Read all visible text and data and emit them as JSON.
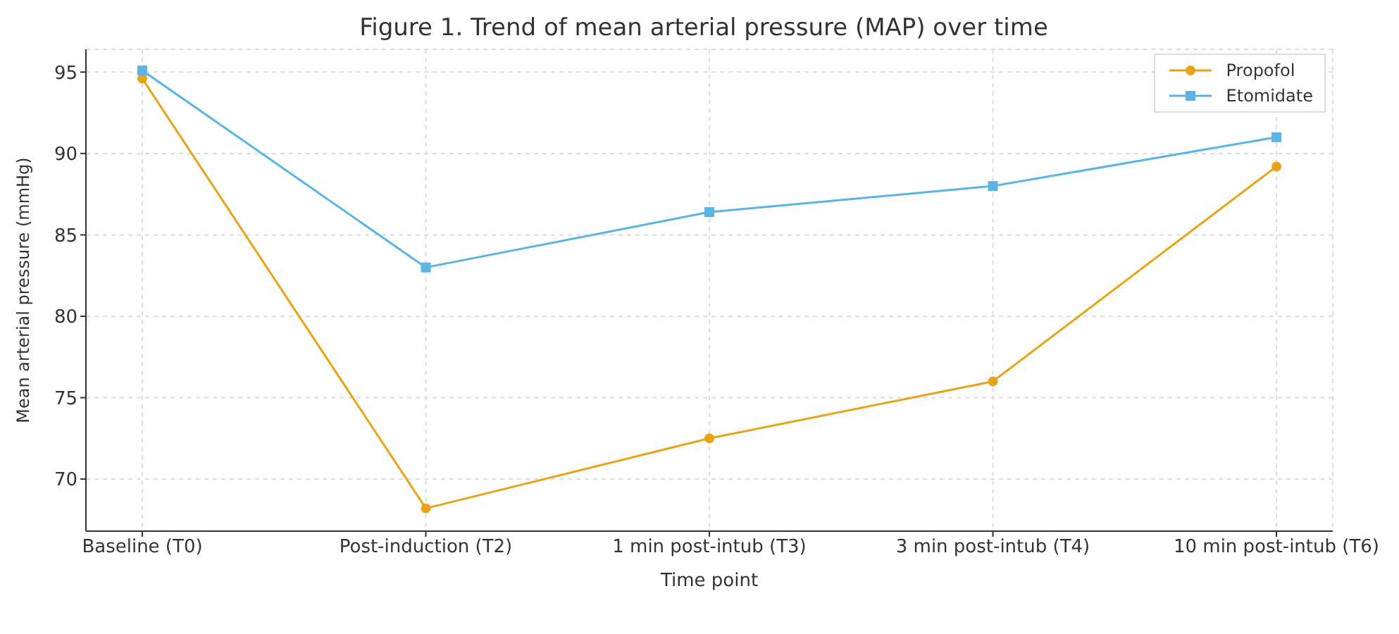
{
  "chart_data": {
    "type": "line",
    "title": "Figure 1. Trend of mean arterial pressure (MAP) over time",
    "xlabel": "Time point",
    "ylabel": "Mean arterial pressure (mmHg)",
    "categories": [
      "Baseline (T0)",
      "Post-induction (T2)",
      "1 min post-intub (T3)",
      "3 min post-intub (T4)",
      "10 min post-intub (T6)"
    ],
    "series": [
      {
        "name": "Propofol",
        "color": "#e8a317",
        "marker": "circle",
        "values": [
          94.6,
          68.2,
          72.5,
          76.0,
          89.2
        ]
      },
      {
        "name": "Etomidate",
        "color": "#5ab4e5",
        "marker": "square",
        "values": [
          95.1,
          83.0,
          86.4,
          88.0,
          91.0
        ]
      }
    ],
    "ylim": [
      66.8,
      96.4
    ],
    "yticks": [
      70,
      75,
      80,
      85,
      90,
      95
    ],
    "grid": true,
    "legend": "top right",
    "line_style": "solid"
  }
}
